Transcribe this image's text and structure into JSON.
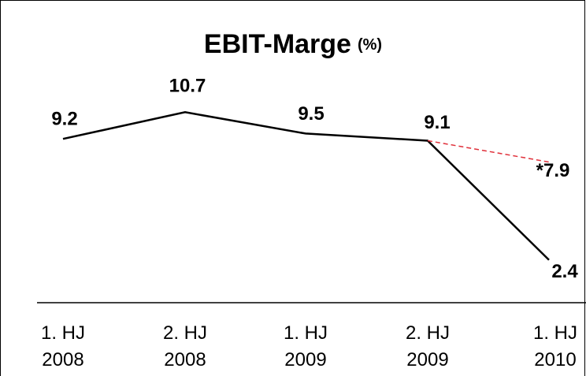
{
  "chart_data": {
    "type": "line",
    "title": "EBIT-Marge",
    "title_unit": "(%)",
    "categories": [
      [
        "1. HJ",
        "2008"
      ],
      [
        "2. HJ",
        "2008"
      ],
      [
        "1. HJ",
        "2009"
      ],
      [
        "2. HJ",
        "2009"
      ],
      [
        "1. HJ",
        "2010"
      ]
    ],
    "series": [
      {
        "values": [
          9.2,
          10.7,
          9.5,
          9.1,
          2.4
        ],
        "color": "#000000"
      },
      {
        "values": [
          null,
          null,
          null,
          9.1,
          7.9
        ],
        "value_labels": [
          null,
          null,
          null,
          null,
          "*7.9"
        ],
        "color": "#e0303a",
        "dashed": true
      }
    ],
    "ylim": [
      0,
      17
    ]
  }
}
